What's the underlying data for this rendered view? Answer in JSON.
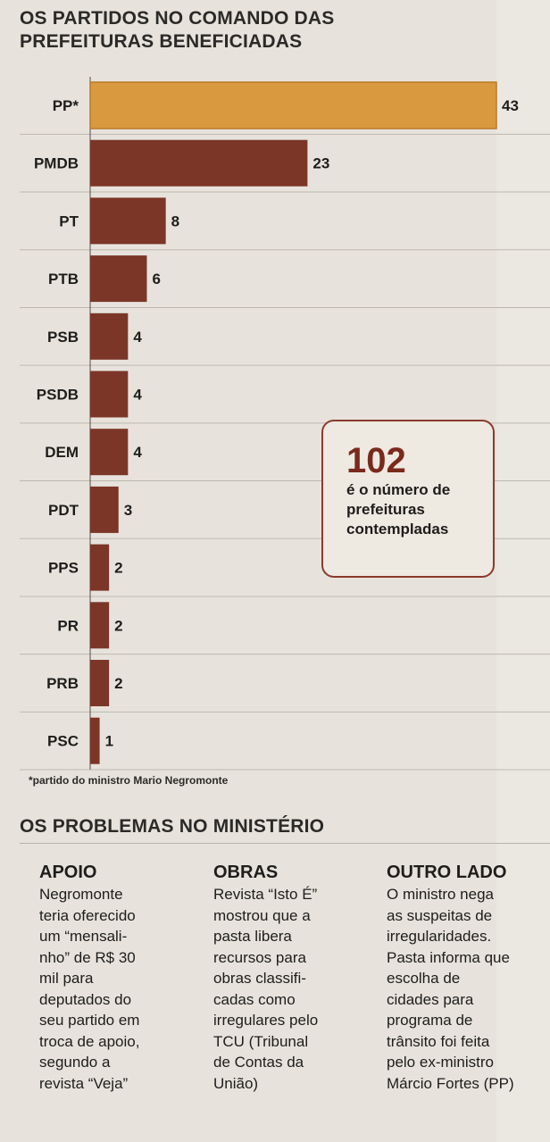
{
  "header": {
    "title": "OS PARTIDOS NO COMANDO DAS PREFEITURAS BENEFICIADAS"
  },
  "chart_data": {
    "type": "bar",
    "orientation": "horizontal",
    "categories": [
      "PP*",
      "PMDB",
      "PT",
      "PTB",
      "PSB",
      "PSDB",
      "DEM",
      "PDT",
      "PPS",
      "PR",
      "PRB",
      "PSC"
    ],
    "values": [
      43,
      23,
      8,
      6,
      4,
      4,
      4,
      3,
      2,
      2,
      2,
      1
    ],
    "highlight_category": "PP*",
    "title": "OS PARTIDOS NO COMANDO DAS PREFEITURAS BENEFICIADAS",
    "xlabel": "",
    "ylabel": "",
    "xlim": [
      0,
      43
    ],
    "grid": true,
    "colors": {
      "bar": "#7b3628",
      "highlight": "#d99a3f",
      "highlight_border": "#b87a2a"
    }
  },
  "callout": {
    "number": "102",
    "text": "é o número de prefeituras contempladas"
  },
  "footnote": "*partido do ministro Mario Negromonte",
  "section": {
    "title": "OS PROBLEMAS NO MINISTÉRIO",
    "columns": [
      {
        "heading": "APOIO",
        "lines": [
          "Negromonte",
          "teria oferecido",
          "um “mensali-",
          "nho” de R$ 30",
          "mil para",
          "deputados do",
          "seu partido em",
          "troca de apoio,",
          "segundo a",
          "revista “Veja”"
        ]
      },
      {
        "heading": "OBRAS",
        "lines": [
          "Revista “Isto É”",
          "mostrou que a",
          "pasta libera",
          "recursos para",
          "obras classifi-",
          "cadas como",
          "irregulares pelo",
          "TCU (Tribunal",
          "de Contas da",
          "União)"
        ]
      },
      {
        "heading": "OUTRO LADO",
        "lines": [
          "O ministro nega",
          "as suspeitas de",
          "irregularidades.",
          "Pasta informa que",
          "escolha de",
          "cidades para",
          "programa de",
          "trânsito foi feita",
          "pelo ex-ministro",
          "Márcio Fortes (PP)"
        ]
      }
    ]
  }
}
